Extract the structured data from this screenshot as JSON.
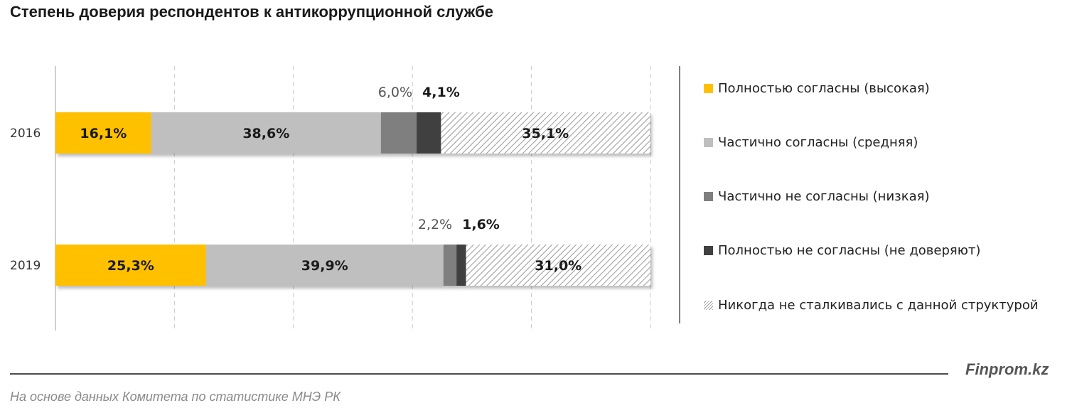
{
  "title": "Степень доверия респондентов к антикоррупционной службе",
  "brand": "Finprom.kz",
  "source": "На основе данных  Комитета по статистике МНЭ РК",
  "chart_data": {
    "type": "bar",
    "orientation": "horizontal",
    "stacked": true,
    "normalized": true,
    "xlim": [
      0,
      100
    ],
    "grid": "vertical dashed",
    "legend_position": "right",
    "categories": [
      "2016",
      "2019"
    ],
    "series": [
      {
        "name": "Полностью согласны (высокая)",
        "values": [
          16.1,
          25.3
        ],
        "labels": [
          "16,1%",
          "25,3%"
        ],
        "color": "#FFC000",
        "pattern": "solid",
        "label_position": "inside"
      },
      {
        "name": "Частично согласны (средняя)",
        "values": [
          38.6,
          39.9
        ],
        "labels": [
          "38,6%",
          "39,9%"
        ],
        "color": "#BFBFBF",
        "pattern": "solid",
        "label_position": "inside"
      },
      {
        "name": "Частично не согласны (низкая)",
        "values": [
          6.0,
          2.2
        ],
        "labels": [
          "6,0%",
          "2,2%"
        ],
        "color": "#7F7F7F",
        "pattern": "solid",
        "label_position": "above"
      },
      {
        "name": "Полностью не согласны (не доверяют)",
        "values": [
          4.1,
          1.6
        ],
        "labels": [
          "4,1%",
          "1,6%"
        ],
        "color": "#404040",
        "pattern": "solid",
        "label_position": "above"
      },
      {
        "name": "Никогда не сталкивались с данной структурой",
        "values": [
          35.1,
          31.0
        ],
        "labels": [
          "35,1%",
          "31,0%"
        ],
        "color": "#9A9A9A",
        "pattern": "hatch",
        "label_position": "inside"
      }
    ]
  }
}
